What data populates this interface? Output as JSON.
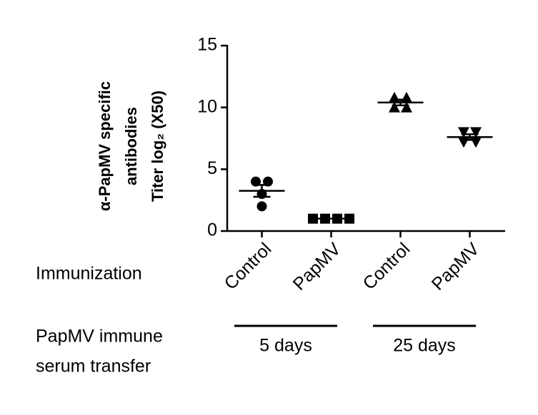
{
  "chart_data": {
    "type": "scatter",
    "ylabel": [
      "α-PapMV specific",
      "antibodies",
      "Titer log₂ (X50)"
    ],
    "row_labels": {
      "immunization": "Immunization",
      "transfer": [
        "PapMV immune",
        "serum transfer"
      ]
    },
    "categories": [
      "Control",
      "PapMV",
      "Control",
      "PapMV"
    ],
    "groups": [
      "5 days",
      "25 days"
    ],
    "values": [
      [
        4,
        4,
        3,
        2
      ],
      [
        1,
        1,
        1,
        1
      ],
      [
        10.8,
        10.8,
        10,
        10
      ],
      [
        8,
        8,
        7.2,
        7.2
      ]
    ],
    "markers": [
      "circle",
      "square",
      "triangle",
      "triangle-down"
    ],
    "color": "#000000",
    "ylim": [
      0,
      15
    ],
    "yticks": [
      0,
      5,
      10,
      15
    ]
  }
}
